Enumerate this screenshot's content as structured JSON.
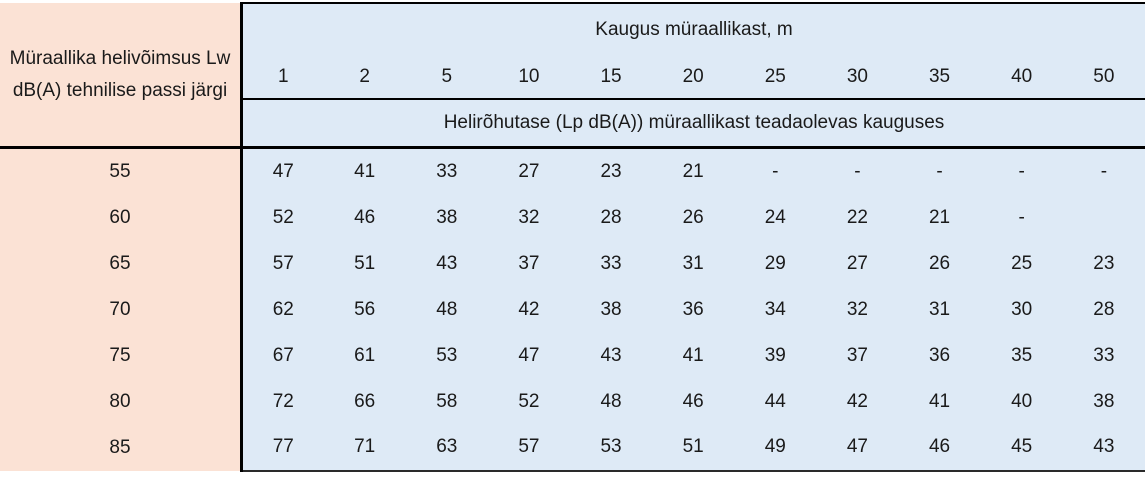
{
  "table": {
    "lw_header": "Müraallika helivõimsus Lw dB(A) tehnilise passi järgi",
    "distance_title": "Kaugus müraallikast, m",
    "spl_subtitle": "Helirõhutase (Lp dB(A)) müraallikast teadaolevas kauguses",
    "distances": [
      "1",
      "2",
      "5",
      "10",
      "15",
      "20",
      "25",
      "30",
      "35",
      "40",
      "50"
    ],
    "rows": [
      {
        "lw": "55",
        "values": [
          "47",
          "41",
          "33",
          "27",
          "23",
          "21",
          "-",
          "-",
          "-",
          "-",
          "-"
        ]
      },
      {
        "lw": "60",
        "values": [
          "52",
          "46",
          "38",
          "32",
          "28",
          "26",
          "24",
          "22",
          "21",
          "-",
          ""
        ]
      },
      {
        "lw": "65",
        "values": [
          "57",
          "51",
          "43",
          "37",
          "33",
          "31",
          "29",
          "27",
          "26",
          "25",
          "23"
        ]
      },
      {
        "lw": "70",
        "values": [
          "62",
          "56",
          "48",
          "42",
          "38",
          "36",
          "34",
          "32",
          "31",
          "30",
          "28"
        ]
      },
      {
        "lw": "75",
        "values": [
          "67",
          "61",
          "53",
          "47",
          "43",
          "41",
          "39",
          "37",
          "36",
          "35",
          "33"
        ]
      },
      {
        "lw": "80",
        "values": [
          "72",
          "66",
          "58",
          "52",
          "48",
          "46",
          "44",
          "42",
          "41",
          "40",
          "38"
        ]
      },
      {
        "lw": "85",
        "values": [
          "77",
          "71",
          "63",
          "57",
          "53",
          "51",
          "49",
          "47",
          "46",
          "45",
          "43"
        ]
      }
    ],
    "colors": {
      "left_column_bg": "#FBE2D5",
      "data_area_bg": "#DEEAF6",
      "border": "#000000",
      "text": "#1A1A1A"
    }
  }
}
